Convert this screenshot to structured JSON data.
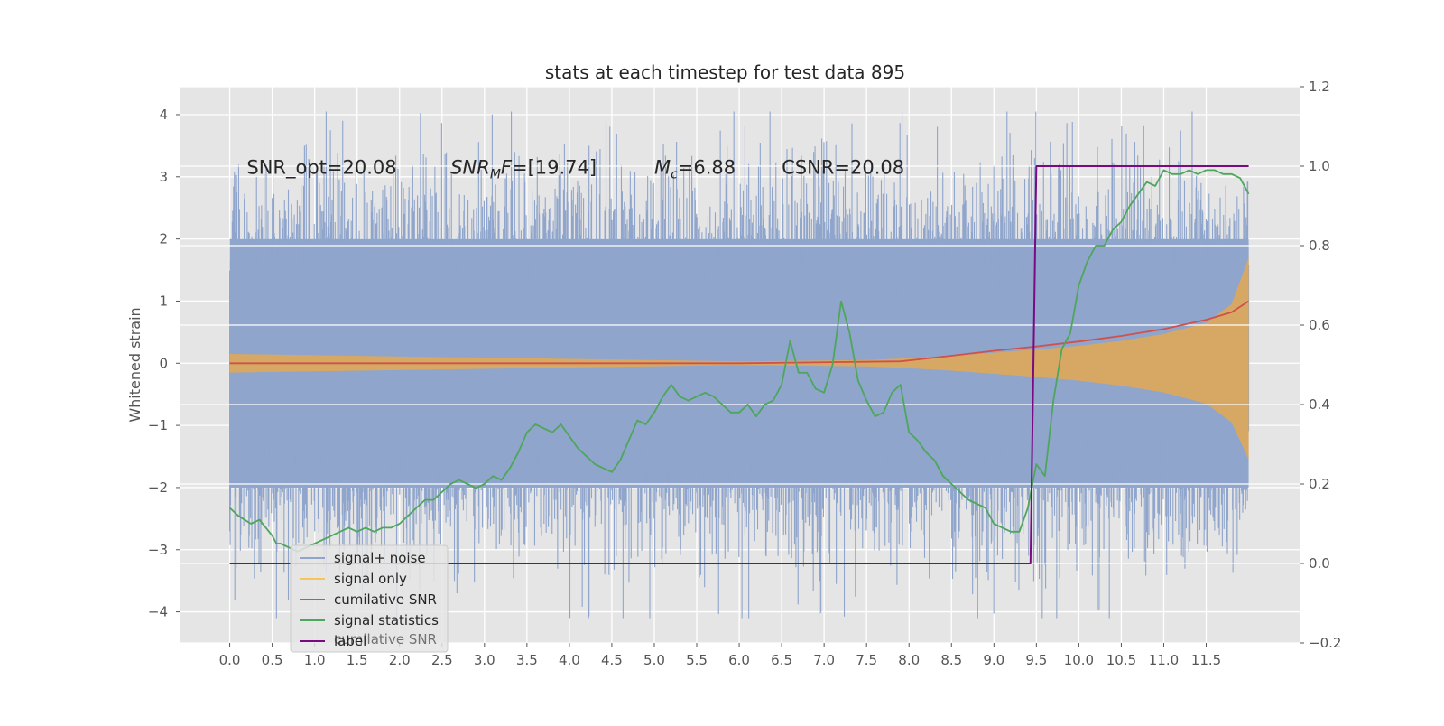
{
  "chart_data": {
    "type": "line",
    "title": "stats at each timestep for test data 895",
    "xlabel": "",
    "ylabel": "Whitened strain",
    "y2label": "",
    "xlim": [
      -0.58,
      12.6
    ],
    "ylim": [
      -4.5,
      4.45
    ],
    "y2lim": [
      -0.2,
      1.2
    ],
    "grid": true,
    "x_ticks": [
      0.0,
      0.5,
      1.0,
      1.5,
      2.0,
      2.5,
      3.0,
      3.5,
      4.0,
      4.5,
      5.0,
      5.5,
      6.0,
      6.5,
      7.0,
      7.5,
      8.0,
      8.5,
      9.0,
      9.5,
      10.0,
      10.5,
      11.0,
      11.5
    ],
    "x_tick_labels": [
      "0.0",
      "0.5",
      "1.0",
      "1.5",
      "2.0",
      "2.5",
      "3.0",
      "3.5",
      "4.0",
      "4.5",
      "5.0",
      "5.5",
      "6.0",
      "6.5",
      "7.0",
      "7.5",
      "8.0",
      "8.5",
      "9.0",
      "9.5",
      "10.0",
      "10.5",
      "11.0",
      "11.5"
    ],
    "y_ticks": [
      4,
      3,
      2,
      1,
      0,
      -1,
      -2,
      -3,
      -4
    ],
    "y_tick_labels": [
      "4",
      "3",
      "2",
      "1",
      "0",
      "−1",
      "−2",
      "−3",
      "−4"
    ],
    "y2_ticks": [
      1.2,
      1.0,
      0.8,
      0.6,
      0.4,
      0.2,
      0.0,
      -0.2
    ],
    "y2_tick_labels": [
      "1.2",
      "1.0",
      "0.8",
      "0.6",
      "0.4",
      "0.2",
      "0.0",
      "−0.2"
    ],
    "annotations": [
      {
        "text": "SNR_opt=20.08",
        "x": 0.2,
        "y": 3.15
      },
      {
        "text": "SNR",
        "sub": "M",
        "after": "F=[19.74]",
        "x": 2.6,
        "y": 3.15
      },
      {
        "text": "M",
        "sub": "c",
        "after": "=6.88",
        "x": 5.0,
        "y": 3.15
      },
      {
        "text": "CSNR=20.08",
        "x": 6.5,
        "y": 3.15
      }
    ],
    "legend": {
      "location": "lower-left",
      "entries": [
        {
          "label": "signal+ noise",
          "color": "#8fa5cc"
        },
        {
          "label": "signal only",
          "color": "#f5c55a"
        },
        {
          "label": "cumilative SNR",
          "color": "#d0504c"
        },
        {
          "label": "signal statistics",
          "color": "#4ea65c"
        },
        {
          "label": "label",
          "color": "#7a0a82"
        }
      ],
      "ghost_text": "cumilative SNR"
    },
    "colors": {
      "plot_bg": "#e5e5e5",
      "noise": "#8fa5cc",
      "signal": "#dca85a",
      "cumulative": "#d0504c",
      "statistics": "#4ea65c",
      "label": "#7a0a82"
    },
    "series": [
      {
        "name": "signal+ noise",
        "axis": "left",
        "style": "dense-noise",
        "x_range": [
          0.0,
          12.0
        ],
        "typical_range": [
          -2.0,
          2.0
        ],
        "peak_range": [
          -4.1,
          4.05
        ]
      },
      {
        "name": "signal only",
        "axis": "left",
        "style": "filled-envelope",
        "x": [
          0.0,
          6.0,
          7.5,
          8.0,
          8.5,
          9.0,
          9.5,
          10.0,
          10.5,
          11.0,
          11.5,
          11.8,
          12.0
        ],
        "upper": [
          0.15,
          0.03,
          0.05,
          0.08,
          0.12,
          0.17,
          0.22,
          0.28,
          0.36,
          0.47,
          0.65,
          0.95,
          1.7
        ],
        "lower": [
          -0.15,
          -0.03,
          -0.05,
          -0.08,
          -0.12,
          -0.17,
          -0.22,
          -0.28,
          -0.36,
          -0.47,
          -0.65,
          -0.95,
          -1.55
        ]
      },
      {
        "name": "cumilative SNR",
        "axis": "left",
        "x": [
          0.0,
          6.0,
          7.9,
          8.5,
          9.0,
          9.5,
          10.0,
          10.5,
          11.0,
          11.5,
          11.8,
          12.0
        ],
        "values": [
          0.0,
          0.0,
          0.03,
          0.12,
          0.2,
          0.27,
          0.35,
          0.44,
          0.55,
          0.7,
          0.82,
          1.0
        ]
      },
      {
        "name": "signal statistics",
        "axis": "right",
        "x": [
          0.0,
          0.1,
          0.25,
          0.35,
          0.5,
          0.55,
          0.6,
          0.7,
          0.8,
          0.9,
          1.0,
          1.1,
          1.2,
          1.3,
          1.4,
          1.5,
          1.6,
          1.7,
          1.8,
          1.9,
          2.0,
          2.1,
          2.2,
          2.3,
          2.4,
          2.5,
          2.6,
          2.7,
          2.8,
          2.9,
          3.0,
          3.1,
          3.2,
          3.3,
          3.4,
          3.5,
          3.6,
          3.7,
          3.8,
          3.9,
          4.0,
          4.1,
          4.2,
          4.3,
          4.4,
          4.5,
          4.6,
          4.7,
          4.8,
          4.9,
          5.0,
          5.1,
          5.2,
          5.3,
          5.4,
          5.5,
          5.6,
          5.7,
          5.8,
          5.9,
          6.0,
          6.1,
          6.2,
          6.3,
          6.4,
          6.5,
          6.6,
          6.7,
          6.8,
          6.9,
          7.0,
          7.1,
          7.2,
          7.3,
          7.4,
          7.5,
          7.6,
          7.7,
          7.8,
          7.9,
          8.0,
          8.1,
          8.2,
          8.3,
          8.4,
          8.5,
          8.6,
          8.7,
          8.8,
          8.9,
          9.0,
          9.1,
          9.2,
          9.3,
          9.4,
          9.5,
          9.6,
          9.7,
          9.8,
          9.9,
          10.0,
          10.1,
          10.2,
          10.3,
          10.4,
          10.5,
          10.6,
          10.7,
          10.8,
          10.9,
          11.0,
          11.1,
          11.2,
          11.3,
          11.4,
          11.5,
          11.6,
          11.7,
          11.8,
          11.9,
          12.0
        ],
        "values": [
          0.14,
          0.12,
          0.1,
          0.11,
          0.07,
          0.05,
          0.05,
          0.04,
          0.03,
          0.04,
          0.05,
          0.06,
          0.07,
          0.08,
          0.09,
          0.08,
          0.09,
          0.08,
          0.09,
          0.09,
          0.1,
          0.12,
          0.14,
          0.16,
          0.16,
          0.18,
          0.2,
          0.21,
          0.2,
          0.19,
          0.2,
          0.22,
          0.21,
          0.24,
          0.28,
          0.33,
          0.35,
          0.34,
          0.33,
          0.35,
          0.32,
          0.29,
          0.27,
          0.25,
          0.24,
          0.23,
          0.26,
          0.31,
          0.36,
          0.35,
          0.38,
          0.42,
          0.45,
          0.42,
          0.41,
          0.42,
          0.43,
          0.42,
          0.4,
          0.38,
          0.38,
          0.4,
          0.37,
          0.4,
          0.41,
          0.45,
          0.56,
          0.48,
          0.48,
          0.44,
          0.43,
          0.5,
          0.66,
          0.58,
          0.46,
          0.41,
          0.37,
          0.38,
          0.43,
          0.45,
          0.33,
          0.31,
          0.28,
          0.26,
          0.22,
          0.2,
          0.18,
          0.16,
          0.15,
          0.14,
          0.1,
          0.09,
          0.08,
          0.08,
          0.14,
          0.25,
          0.22,
          0.41,
          0.54,
          0.58,
          0.7,
          0.76,
          0.8,
          0.8,
          0.84,
          0.86,
          0.9,
          0.93,
          0.96,
          0.95,
          0.99,
          0.98,
          0.98,
          0.99,
          0.98,
          0.99,
          0.99,
          0.98,
          0.98,
          0.97,
          0.93
        ]
      },
      {
        "name": "label",
        "axis": "right",
        "x": [
          0.0,
          9.43,
          9.5,
          12.0
        ],
        "values": [
          0.0,
          0.0,
          1.0,
          1.0
        ]
      }
    ]
  }
}
